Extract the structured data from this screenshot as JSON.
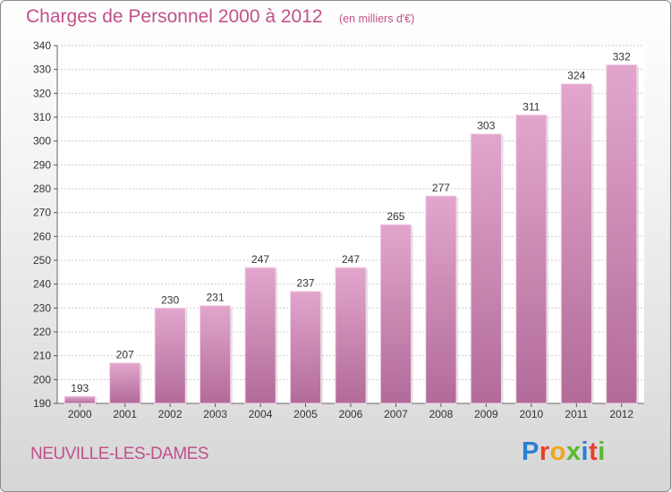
{
  "title": "Charges de Personnel 2000 à 2012",
  "subtitle": "(en milliers d'€)",
  "location": "NEUVILLE-LES-DAMES",
  "brand": {
    "text": "Proxiti",
    "letter_colors": [
      "#2a7fd4",
      "#e8402a",
      "#f2a51a",
      "#58b82e",
      "#2a7fd4",
      "#e8402a",
      "#58b82e"
    ]
  },
  "colors": {
    "bar_top": "#e2a6cd",
    "bar_bottom": "#b26b99",
    "title": "#c0508a",
    "grid": "#cccccc"
  },
  "chart_data": {
    "type": "bar",
    "categories": [
      "2000",
      "2001",
      "2002",
      "2003",
      "2004",
      "2005",
      "2006",
      "2007",
      "2008",
      "2009",
      "2010",
      "2011",
      "2012"
    ],
    "values": [
      193,
      207,
      230,
      231,
      247,
      237,
      247,
      265,
      277,
      303,
      311,
      324,
      332
    ],
    "ylim": [
      190,
      340
    ],
    "yticks": [
      190,
      200,
      210,
      220,
      230,
      240,
      250,
      260,
      270,
      280,
      290,
      300,
      310,
      320,
      330,
      340
    ],
    "grid": true,
    "data_labels": true,
    "title": "Charges de Personnel 2000 à 2012",
    "xlabel": "",
    "ylabel": ""
  }
}
